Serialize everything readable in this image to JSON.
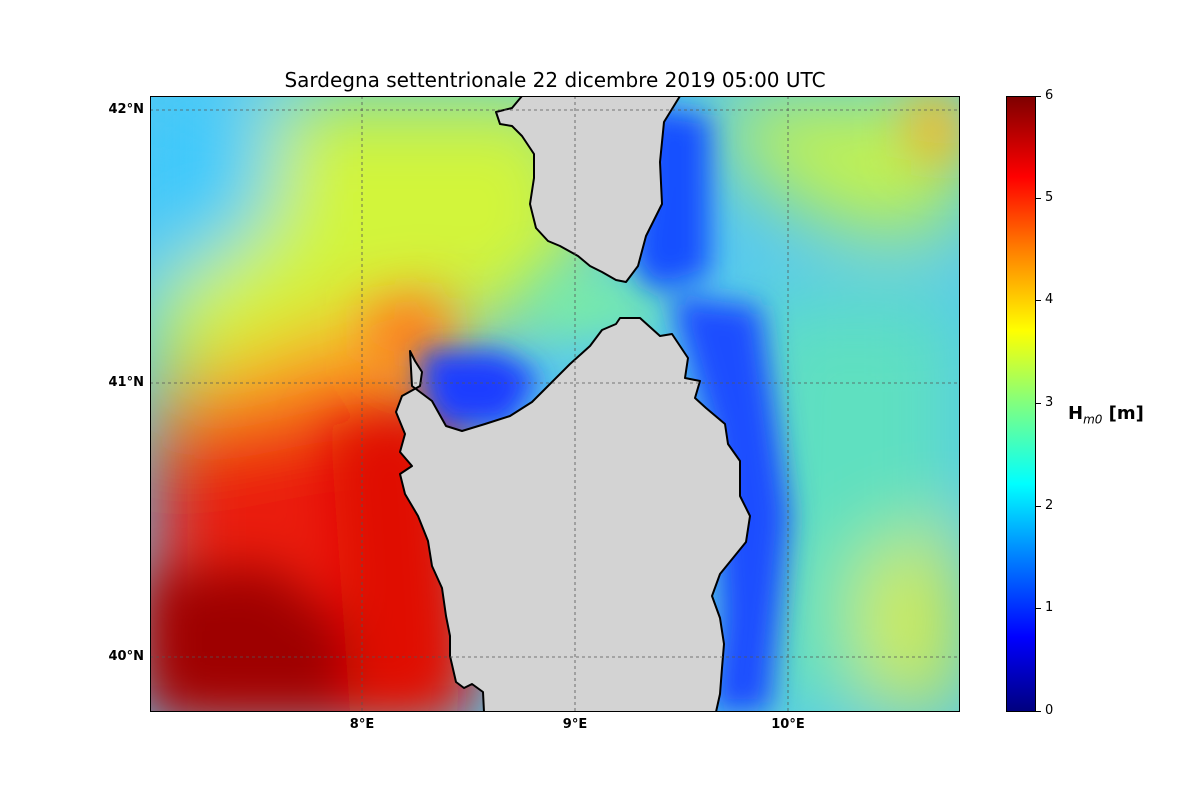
{
  "title": "Sardegna settentrionale  22 dicembre 2019  05:00 UTC",
  "map": {
    "lat_labels": [
      {
        "id": "42",
        "text": "42°N"
      },
      {
        "id": "41",
        "text": "41°N"
      },
      {
        "id": "40",
        "text": "40°N"
      }
    ],
    "lon_labels": [
      {
        "id": "8",
        "text": "8°E"
      },
      {
        "id": "9",
        "text": "9°E"
      },
      {
        "id": "10",
        "text": "10°E"
      }
    ],
    "land_color": "#d3d3d3",
    "coastline_color": "#000000",
    "gridlines": "dashed"
  },
  "colorbar": {
    "label_main": "H",
    "label_sub": "m0",
    "label_unit": " [m]",
    "ticks": [
      "0",
      "1",
      "2",
      "3",
      "4",
      "5",
      "6"
    ],
    "range": [
      0,
      6
    ],
    "colormap": "jet"
  }
}
